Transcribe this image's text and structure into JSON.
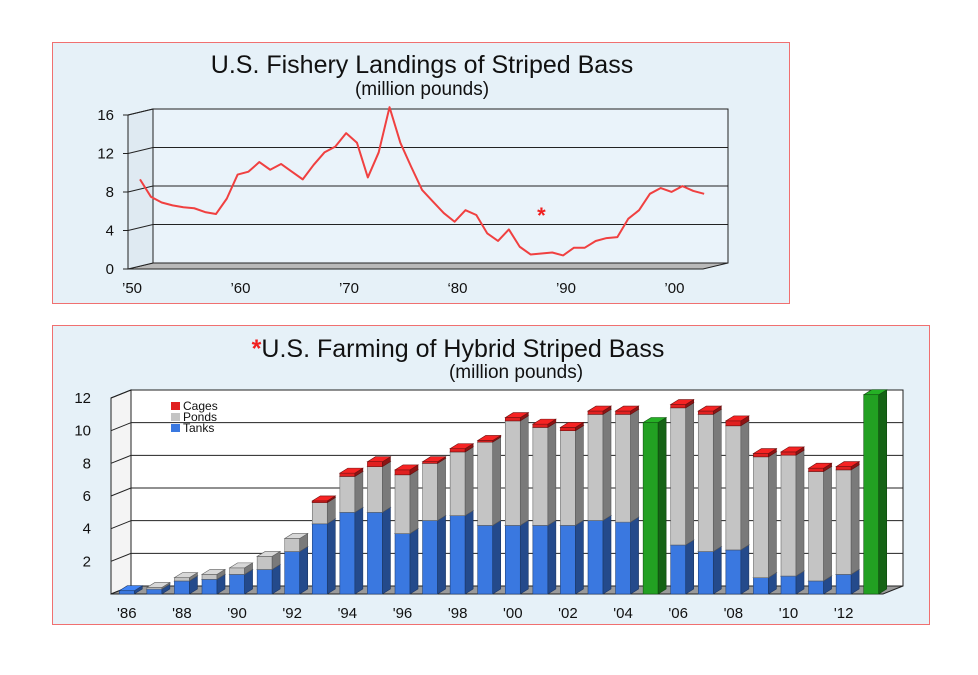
{
  "chart_data": [
    {
      "type": "line",
      "title": "U.S. Fishery Landings of Striped Bass",
      "subtitle": "(million pounds)",
      "x_tick_labels": [
        "’50",
        "’60",
        "’70",
        "‘80",
        "’90",
        "’00"
      ],
      "x_tick_years": [
        1950,
        1960,
        1970,
        1980,
        1990,
        2000
      ],
      "y_ticks": [
        0,
        4,
        8,
        12,
        16
      ],
      "ylim": [
        0,
        16
      ],
      "xlim": [
        1950,
        2003
      ],
      "marker": "*",
      "marker_year": 1987,
      "marker_value": 5.6,
      "color": "#f04040",
      "series": [
        {
          "x": [
            1950,
            1951,
            1952,
            1953,
            1954,
            1955,
            1956,
            1957,
            1958,
            1959,
            1960,
            1961,
            1962,
            1963,
            1964,
            1965,
            1966,
            1967,
            1968,
            1969,
            1970,
            1971,
            1972,
            1973,
            1974,
            1975,
            1976,
            1977,
            1978,
            1979,
            1980,
            1981,
            1982,
            1983,
            1984,
            1985,
            1986,
            1987,
            1988,
            1989,
            1990,
            1991,
            1992,
            1993,
            1994,
            1995,
            1996,
            1997,
            1998,
            1999,
            2000,
            2001,
            2002
          ],
          "values": [
            9,
            7.2,
            6.6,
            6.3,
            6.1,
            6.0,
            5.6,
            5.4,
            7.0,
            9.5,
            9.8,
            10.8,
            10.0,
            10.6,
            9.8,
            9.0,
            10.5,
            11.8,
            12.4,
            13.8,
            12.8,
            9.2,
            11.8,
            16.5,
            12.8,
            10.3,
            7.9,
            6.7,
            5.5,
            4.6,
            5.8,
            5.3,
            3.4,
            2.6,
            3.8,
            2.0,
            1.2,
            1.3,
            1.4,
            1.1,
            1.9,
            1.9,
            2.6,
            2.9,
            3.0,
            4.9,
            5.8,
            7.5,
            8.1,
            7.7,
            8.3,
            7.8,
            7.5
          ]
        }
      ]
    },
    {
      "type": "bar",
      "stacked": true,
      "title": "U.S. Farming of Hybrid Striped Bass",
      "title_marker": "*",
      "subtitle": "(million pounds)",
      "x_tick_labels": [
        "'86",
        "'88",
        "'90",
        "'92",
        "'94",
        "'96",
        "'98",
        "'00",
        "'02",
        "'04",
        "'06",
        "'08",
        "'10",
        "'12"
      ],
      "years": [
        1986,
        1987,
        1988,
        1989,
        1990,
        1991,
        1992,
        1993,
        1994,
        1995,
        1996,
        1997,
        1998,
        1999,
        2000,
        2001,
        2002,
        2003,
        2004,
        2005,
        2006,
        2007,
        2008,
        2009,
        2010,
        2011,
        2012,
        2013
      ],
      "y_ticks": [
        2,
        4,
        6,
        8,
        10,
        12
      ],
      "ylim": [
        0,
        12
      ],
      "legend": [
        "Cages",
        "Ponds",
        "Tanks"
      ],
      "legend_position": "top-left",
      "colors": {
        "Cages": "#e02020",
        "Ponds": "#c4c4c4",
        "Tanks": "#3a78e0",
        "Total": "#22a022"
      },
      "series": [
        {
          "name": "Tanks",
          "values": [
            0.2,
            0.3,
            0.8,
            0.9,
            1.2,
            1.5,
            2.6,
            4.3,
            5.0,
            5.0,
            3.7,
            4.5,
            4.8,
            4.2,
            4.2,
            4.2,
            4.2,
            4.5,
            4.4,
            0,
            3.0,
            2.6,
            2.7,
            1.0,
            1.1,
            0.8,
            1.2,
            0
          ]
        },
        {
          "name": "Ponds",
          "values": [
            0,
            0.1,
            0.2,
            0.3,
            0.4,
            0.8,
            0.8,
            1.3,
            2.2,
            2.8,
            3.6,
            3.5,
            3.9,
            5.1,
            6.4,
            6.0,
            5.8,
            6.5,
            6.6,
            0,
            8.4,
            8.4,
            7.6,
            7.4,
            7.4,
            6.7,
            6.4,
            0
          ]
        },
        {
          "name": "Cages",
          "values": [
            0,
            0,
            0,
            0,
            0,
            0,
            0,
            0.1,
            0.2,
            0.3,
            0.3,
            0.1,
            0.2,
            0.1,
            0.2,
            0.2,
            0.2,
            0.2,
            0.2,
            0,
            0.2,
            0.2,
            0.3,
            0.2,
            0.2,
            0.2,
            0.2,
            0
          ]
        },
        {
          "name": "",
          "values": [
            0,
            0,
            0,
            0,
            0,
            0,
            0,
            0,
            0,
            0,
            0,
            0,
            0,
            0,
            0,
            0,
            0,
            0,
            0,
            10.5,
            0,
            0,
            0,
            0,
            0,
            0,
            0,
            12.2
          ]
        }
      ]
    }
  ]
}
